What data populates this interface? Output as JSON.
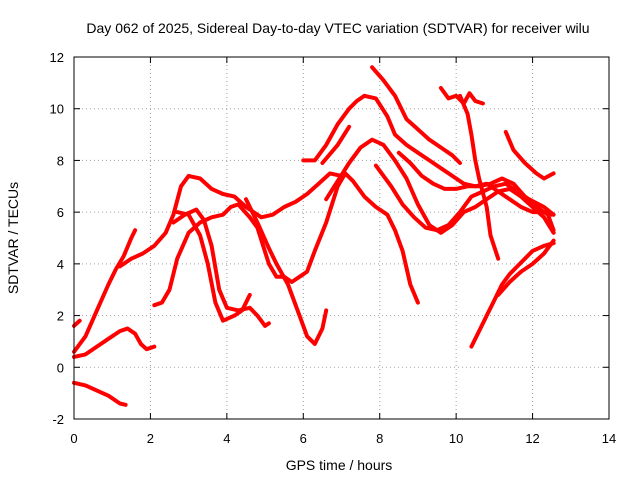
{
  "chart_data": {
    "type": "scatter",
    "title": "Day 062 of 2025, Sidereal Day-to-day VTEC variation (SDTVAR) for receiver wilu",
    "xlabel": "GPS time / hours",
    "ylabel": "SDTVAR / TECUs",
    "xlim": [
      0,
      14
    ],
    "ylim": [
      -2,
      12
    ],
    "xticks": [
      "0",
      "2",
      "4",
      "6",
      "8",
      "10",
      "12",
      "14"
    ],
    "yticks": [
      "-2",
      "0",
      "2",
      "4",
      "6",
      "8",
      "10",
      "12"
    ],
    "grid": true,
    "marker_color": "#ff0000",
    "series": [
      {
        "points": [
          [
            0,
            -0.6
          ],
          [
            0.3,
            -0.7
          ],
          [
            0.6,
            -0.9
          ],
          [
            0.9,
            -1.1
          ],
          [
            1.2,
            -1.4
          ],
          [
            1.35,
            -1.45
          ]
        ]
      },
      {
        "points": [
          [
            0,
            0.4
          ],
          [
            0.3,
            0.5
          ],
          [
            0.6,
            0.8
          ],
          [
            0.9,
            1.1
          ],
          [
            1.2,
            1.4
          ],
          [
            1.4,
            1.5
          ],
          [
            1.6,
            1.3
          ],
          [
            1.75,
            0.9
          ],
          [
            1.9,
            0.7
          ],
          [
            2.1,
            0.8
          ]
        ]
      },
      {
        "points": [
          [
            0,
            1.6
          ],
          [
            0.15,
            1.8
          ]
        ]
      },
      {
        "points": [
          [
            0,
            0.6
          ],
          [
            0.3,
            1.2
          ],
          [
            0.6,
            2.2
          ],
          [
            0.9,
            3.2
          ],
          [
            1.1,
            3.8
          ],
          [
            1.3,
            4.3
          ],
          [
            1.5,
            5.0
          ],
          [
            1.6,
            5.3
          ]
        ]
      },
      {
        "points": [
          [
            1.2,
            3.9
          ],
          [
            1.5,
            4.2
          ],
          [
            1.8,
            4.4
          ],
          [
            2.1,
            4.7
          ],
          [
            2.4,
            5.2
          ],
          [
            2.6,
            5.9
          ],
          [
            2.8,
            7.0
          ],
          [
            3.0,
            7.4
          ],
          [
            3.3,
            7.3
          ],
          [
            3.6,
            6.9
          ],
          [
            3.9,
            6.7
          ],
          [
            4.2,
            6.6
          ],
          [
            4.5,
            6.2
          ],
          [
            4.7,
            6.0
          ],
          [
            4.9,
            5.8
          ],
          [
            5.2,
            5.9
          ],
          [
            5.5,
            6.2
          ],
          [
            5.8,
            6.4
          ],
          [
            6.1,
            6.7
          ],
          [
            6.4,
            7.1
          ],
          [
            6.7,
            7.5
          ],
          [
            7.0,
            7.4
          ]
        ]
      },
      {
        "points": [
          [
            2.1,
            2.4
          ],
          [
            2.3,
            2.5
          ],
          [
            2.5,
            3.0
          ],
          [
            2.7,
            4.2
          ],
          [
            3.0,
            5.2
          ],
          [
            3.3,
            5.6
          ],
          [
            3.6,
            5.8
          ],
          [
            3.9,
            5.9
          ],
          [
            4.1,
            6.2
          ],
          [
            4.3,
            6.3
          ],
          [
            4.6,
            5.8
          ],
          [
            4.8,
            5.4
          ],
          [
            5.1,
            4.0
          ],
          [
            5.3,
            3.5
          ],
          [
            5.5,
            3.5
          ],
          [
            5.7,
            3.3
          ],
          [
            5.9,
            3.5
          ],
          [
            6.1,
            3.7
          ],
          [
            6.3,
            4.5
          ],
          [
            6.6,
            5.6
          ],
          [
            6.9,
            7.0
          ],
          [
            7.1,
            7.5
          ],
          [
            7.3,
            7.2
          ],
          [
            7.6,
            6.6
          ],
          [
            7.9,
            6.2
          ],
          [
            8.2,
            5.9
          ],
          [
            8.4,
            5.3
          ],
          [
            8.6,
            4.5
          ],
          [
            8.8,
            3.2
          ],
          [
            9.0,
            2.5
          ]
        ]
      },
      {
        "points": [
          [
            2.6,
            5.6
          ],
          [
            2.9,
            5.9
          ],
          [
            3.2,
            6.1
          ],
          [
            3.4,
            5.7
          ],
          [
            3.6,
            4.7
          ],
          [
            3.8,
            3.0
          ],
          [
            4.0,
            2.3
          ],
          [
            4.3,
            2.2
          ],
          [
            4.6,
            2.3
          ],
          [
            4.8,
            2.0
          ],
          [
            5.0,
            1.6
          ],
          [
            5.1,
            1.7
          ]
        ]
      },
      {
        "points": [
          [
            2.7,
            6.0
          ],
          [
            3.0,
            5.9
          ],
          [
            3.3,
            5.1
          ],
          [
            3.5,
            4.0
          ],
          [
            3.7,
            2.5
          ],
          [
            3.9,
            1.8
          ],
          [
            4.2,
            2.0
          ],
          [
            4.4,
            2.2
          ],
          [
            4.5,
            2.5
          ],
          [
            4.6,
            2.8
          ]
        ]
      },
      {
        "points": [
          [
            4.5,
            6.5
          ],
          [
            4.8,
            5.6
          ],
          [
            5.1,
            4.6
          ],
          [
            5.3,
            4.0
          ],
          [
            5.6,
            3.2
          ],
          [
            5.9,
            2.0
          ],
          [
            6.1,
            1.2
          ],
          [
            6.3,
            0.9
          ],
          [
            6.5,
            1.5
          ],
          [
            6.6,
            2.2
          ]
        ]
      },
      {
        "points": [
          [
            6.0,
            8.0
          ],
          [
            6.3,
            8.0
          ],
          [
            6.6,
            8.6
          ],
          [
            6.9,
            9.4
          ],
          [
            7.2,
            10.0
          ],
          [
            7.4,
            10.3
          ],
          [
            7.6,
            10.5
          ],
          [
            7.9,
            10.4
          ],
          [
            8.2,
            9.7
          ],
          [
            8.4,
            9.0
          ],
          [
            8.7,
            8.6
          ],
          [
            9.0,
            8.3
          ],
          [
            9.3,
            8.0
          ],
          [
            9.6,
            7.7
          ],
          [
            9.9,
            7.4
          ],
          [
            10.2,
            7.1
          ],
          [
            10.5,
            7.0
          ],
          [
            10.8,
            7.1
          ],
          [
            11.1,
            6.8
          ],
          [
            11.4,
            6.5
          ],
          [
            11.7,
            6.2
          ],
          [
            12.0,
            6.0
          ],
          [
            12.3,
            6.0
          ],
          [
            12.5,
            5.9
          ]
        ]
      },
      {
        "points": [
          [
            6.5,
            7.9
          ],
          [
            6.9,
            8.6
          ],
          [
            7.2,
            9.3
          ]
        ]
      },
      {
        "points": [
          [
            6.6,
            6.5
          ],
          [
            6.9,
            7.2
          ],
          [
            7.2,
            7.9
          ],
          [
            7.5,
            8.5
          ],
          [
            7.8,
            8.8
          ],
          [
            8.1,
            8.6
          ],
          [
            8.4,
            8.0
          ],
          [
            8.7,
            7.3
          ],
          [
            9.0,
            6.3
          ],
          [
            9.3,
            5.5
          ],
          [
            9.6,
            5.2
          ],
          [
            9.9,
            5.5
          ],
          [
            10.2,
            6.0
          ],
          [
            10.5,
            6.2
          ],
          [
            10.8,
            6.5
          ],
          [
            11.1,
            6.8
          ],
          [
            11.4,
            6.9
          ],
          [
            11.7,
            6.6
          ],
          [
            12.0,
            6.2
          ],
          [
            12.3,
            5.8
          ],
          [
            12.55,
            5.2
          ]
        ]
      },
      {
        "points": [
          [
            7.8,
            11.6
          ],
          [
            8.1,
            11.1
          ],
          [
            8.4,
            10.5
          ],
          [
            8.7,
            9.6
          ],
          [
            9.0,
            9.2
          ],
          [
            9.3,
            8.8
          ],
          [
            9.6,
            8.5
          ],
          [
            9.9,
            8.2
          ],
          [
            10.1,
            7.9
          ]
        ]
      },
      {
        "points": [
          [
            7.9,
            7.8
          ],
          [
            8.3,
            7.0
          ],
          [
            8.6,
            6.3
          ],
          [
            8.9,
            5.8
          ],
          [
            9.2,
            5.4
          ],
          [
            9.5,
            5.3
          ],
          [
            9.8,
            5.5
          ],
          [
            10.1,
            6.0
          ],
          [
            10.4,
            6.6
          ],
          [
            10.7,
            6.8
          ],
          [
            11.0,
            7.0
          ],
          [
            11.3,
            7.1
          ],
          [
            11.6,
            6.8
          ],
          [
            11.9,
            6.5
          ],
          [
            12.3,
            6.2
          ],
          [
            12.55,
            5.9
          ]
        ]
      },
      {
        "points": [
          [
            8.5,
            8.3
          ],
          [
            8.8,
            7.9
          ],
          [
            9.1,
            7.4
          ],
          [
            9.4,
            7.1
          ],
          [
            9.7,
            6.9
          ],
          [
            10.0,
            6.9
          ],
          [
            10.3,
            7.0
          ],
          [
            10.6,
            7.0
          ],
          [
            10.9,
            7.1
          ],
          [
            11.2,
            7.3
          ],
          [
            11.5,
            7.1
          ],
          [
            11.8,
            6.6
          ],
          [
            12.1,
            6.2
          ],
          [
            12.4,
            5.9
          ],
          [
            12.55,
            5.3
          ]
        ]
      },
      {
        "points": [
          [
            9.6,
            10.8
          ],
          [
            9.8,
            10.4
          ],
          [
            10.0,
            10.5
          ],
          [
            10.2,
            10.2
          ],
          [
            10.35,
            10.6
          ],
          [
            10.5,
            10.3
          ],
          [
            10.7,
            10.2
          ]
        ]
      },
      {
        "points": [
          [
            10.1,
            10.5
          ],
          [
            10.3,
            9.8
          ],
          [
            10.4,
            9.0
          ],
          [
            10.5,
            8.0
          ],
          [
            10.6,
            7.3
          ],
          [
            10.8,
            6.2
          ],
          [
            10.9,
            5.1
          ],
          [
            11.1,
            4.2
          ]
        ]
      },
      {
        "points": [
          [
            10.4,
            0.8
          ],
          [
            10.6,
            1.4
          ],
          [
            10.8,
            2.0
          ],
          [
            11.0,
            2.6
          ],
          [
            11.2,
            3.2
          ],
          [
            11.4,
            3.6
          ],
          [
            11.6,
            3.9
          ],
          [
            11.8,
            4.2
          ],
          [
            12.0,
            4.5
          ],
          [
            12.3,
            4.7
          ],
          [
            12.55,
            4.8
          ]
        ]
      },
      {
        "points": [
          [
            11.1,
            2.8
          ],
          [
            11.4,
            3.3
          ],
          [
            11.7,
            3.7
          ],
          [
            12.0,
            4.0
          ],
          [
            12.3,
            4.4
          ],
          [
            12.55,
            4.9
          ]
        ]
      },
      {
        "points": [
          [
            11.3,
            9.1
          ],
          [
            11.5,
            8.4
          ],
          [
            11.8,
            7.9
          ],
          [
            12.1,
            7.5
          ],
          [
            12.3,
            7.3
          ],
          [
            12.55,
            7.5
          ]
        ]
      }
    ]
  }
}
